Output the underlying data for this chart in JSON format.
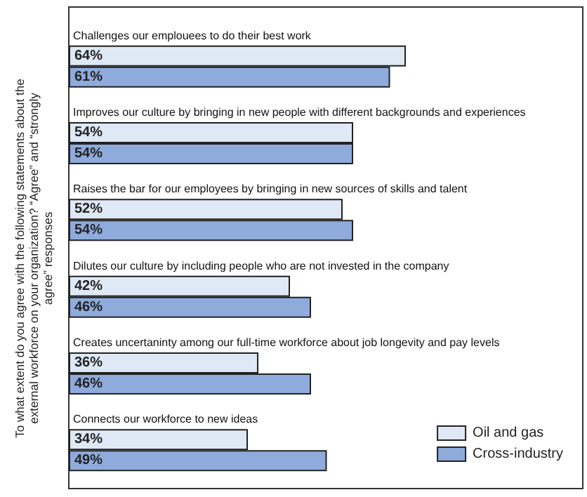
{
  "chart_data": {
    "type": "bar",
    "orientation": "horizontal",
    "ylabel": "To what extent do you agree with the following statements about the external workforce on your organization? “Agree” and “strongly agree” responses",
    "categories": [
      "Challenges our emplouees to do their best work",
      "Improves our culture by bringing in new people with different backgrounds and experiences",
      "Raises the bar for our employees by bringing in new sources of skills and talent",
      "Dilutes our culture by including people who are not invested in the company",
      "Creates uncertaninty among our full-time workforce about job longevity and pay levels",
      "Connects our workforce to new ideas"
    ],
    "series": [
      {
        "name": "Oil and gas",
        "color": "#dfe9f6",
        "values": [
          64,
          54,
          52,
          42,
          36,
          34
        ],
        "value_labels": [
          "64%",
          "54%",
          "52%",
          "42%",
          "36%",
          "34%"
        ]
      },
      {
        "name": "Cross-industry",
        "color": "#8fabdc",
        "values": [
          61,
          54,
          54,
          46,
          46,
          49
        ],
        "value_labels": [
          "61%",
          "54%",
          "54%",
          "46%",
          "46%",
          "49%"
        ]
      }
    ],
    "legend": "bottom right",
    "grid": false
  }
}
